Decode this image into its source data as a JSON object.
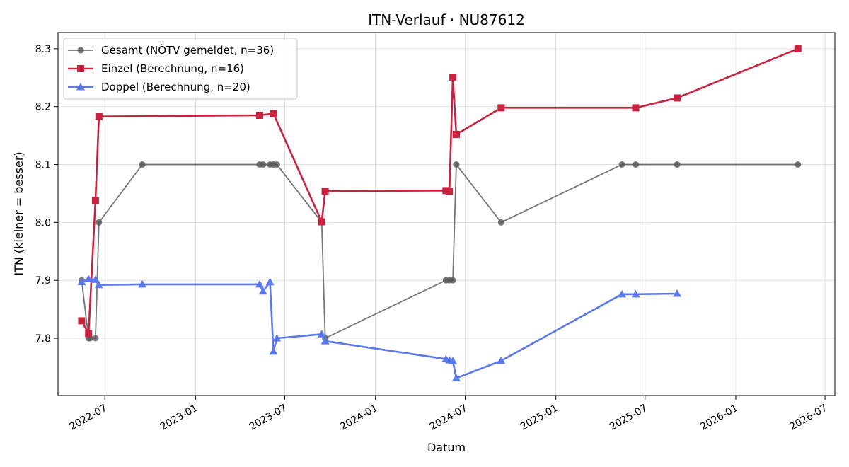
{
  "chart_data": {
    "type": "line",
    "title": "ITN-Verlauf · NU87612",
    "xlabel": "Datum",
    "ylabel": "ITN  (kleiner = besser)",
    "x_type": "date",
    "xlim": [
      "2022-03-28",
      "2026-07-21"
    ],
    "ylim": [
      7.701,
      8.328
    ],
    "x_ticks": [
      "2022-07-01",
      "2023-01-01",
      "2023-07-01",
      "2024-01-01",
      "2024-07-01",
      "2025-01-01",
      "2025-07-01",
      "2026-01-01",
      "2026-07-01"
    ],
    "x_tick_labels": [
      "2022-07",
      "2023-01",
      "2023-07",
      "2024-01",
      "2024-07",
      "2025-01",
      "2025-07",
      "2026-01",
      "2026-07"
    ],
    "y_ticks": [
      7.8,
      7.9,
      8.0,
      8.1,
      8.2,
      8.3
    ],
    "y_tick_labels": [
      "7.8",
      "7.9",
      "8.0",
      "8.1",
      "8.2",
      "8.3"
    ],
    "grid": true,
    "legend_position": "upper-left",
    "series": [
      {
        "name": "Gesamt (NÖTV gemeldet, n=36)",
        "color": "#555555",
        "marker": "circle",
        "points": [
          [
            "2022-05-15",
            7.9
          ],
          [
            "2022-05-29",
            7.8
          ],
          [
            "2022-06-01",
            7.8
          ],
          [
            "2022-06-12",
            7.8
          ],
          [
            "2022-06-19",
            8.0
          ],
          [
            "2022-09-15",
            8.1
          ],
          [
            "2023-05-11",
            8.1
          ],
          [
            "2023-05-18",
            8.1
          ],
          [
            "2023-06-01",
            8.1
          ],
          [
            "2023-06-08",
            8.1
          ],
          [
            "2023-06-15",
            8.1
          ],
          [
            "2023-09-14",
            8.0
          ],
          [
            "2023-09-21",
            7.8
          ],
          [
            "2024-05-23",
            7.9
          ],
          [
            "2024-05-30",
            7.9
          ],
          [
            "2024-06-06",
            7.9
          ],
          [
            "2024-06-13",
            8.1
          ],
          [
            "2024-09-12",
            8.0
          ],
          [
            "2025-05-15",
            8.1
          ],
          [
            "2025-06-12",
            8.1
          ],
          [
            "2025-09-04",
            8.1
          ],
          [
            "2026-05-07",
            8.1
          ]
        ]
      },
      {
        "name": "Einzel (Berechnung, n=16)",
        "color": "#c8223f",
        "marker": "square",
        "points": [
          [
            "2022-05-15",
            7.83
          ],
          [
            "2022-05-29",
            7.808
          ],
          [
            "2022-06-12",
            8.038
          ],
          [
            "2022-06-19",
            8.183
          ],
          [
            "2023-05-11",
            8.185
          ],
          [
            "2023-06-08",
            8.188
          ],
          [
            "2023-09-14",
            8.001
          ],
          [
            "2023-09-21",
            8.054
          ],
          [
            "2024-05-23",
            8.055
          ],
          [
            "2024-05-30",
            8.054
          ],
          [
            "2024-06-06",
            8.251
          ],
          [
            "2024-06-13",
            8.152
          ],
          [
            "2024-09-12",
            8.198
          ],
          [
            "2025-06-12",
            8.198
          ],
          [
            "2025-09-04",
            8.215
          ],
          [
            "2026-05-07",
            8.3
          ]
        ]
      },
      {
        "name": "Doppel (Berechnung, n=20)",
        "color": "#5b78ec",
        "marker": "triangle",
        "points": [
          [
            "2022-05-15",
            7.897
          ],
          [
            "2022-05-29",
            7.902
          ],
          [
            "2022-06-12",
            7.901
          ],
          [
            "2022-06-19",
            7.892
          ],
          [
            "2022-09-15",
            7.893
          ],
          [
            "2023-05-11",
            7.893
          ],
          [
            "2023-05-18",
            7.881
          ],
          [
            "2023-06-01",
            7.897
          ],
          [
            "2023-06-08",
            7.777
          ],
          [
            "2023-06-15",
            7.8
          ],
          [
            "2023-09-14",
            7.807
          ],
          [
            "2023-09-21",
            7.795
          ],
          [
            "2024-05-23",
            7.764
          ],
          [
            "2024-05-30",
            7.762
          ],
          [
            "2024-06-06",
            7.761
          ],
          [
            "2024-06-13",
            7.731
          ],
          [
            "2024-09-12",
            7.761
          ],
          [
            "2025-05-15",
            7.876
          ],
          [
            "2025-06-12",
            7.876
          ],
          [
            "2025-09-04",
            7.877
          ]
        ]
      }
    ]
  }
}
